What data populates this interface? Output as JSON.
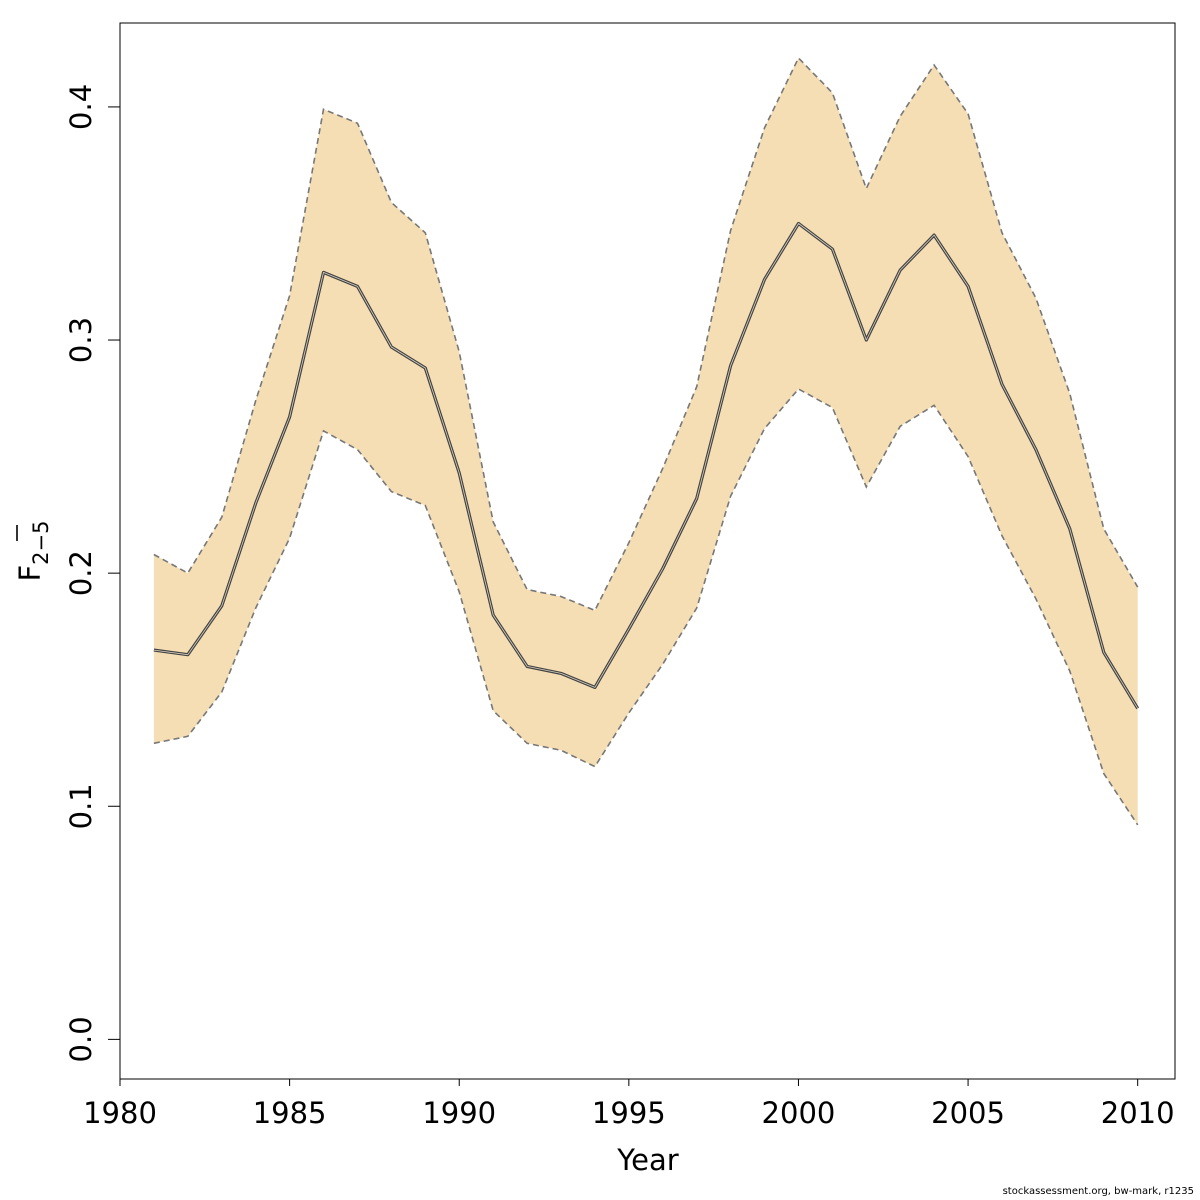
{
  "chart_data": {
    "type": "area",
    "xlabel": "Year",
    "ylabel": {
      "main": "F",
      "sub": "2−5"
    },
    "xlim": [
      1980,
      2011.1
    ],
    "ylim": [
      -0.017,
      0.436
    ],
    "xticks": [
      "1980",
      "1985",
      "1990",
      "1995",
      "2000",
      "2005",
      "2010"
    ],
    "yticks": [
      "0.0",
      "0.1",
      "0.2",
      "0.3",
      "0.4"
    ],
    "colors": {
      "band": "#f5deb3",
      "line": "#444444",
      "bounds": "#777777"
    },
    "x": [
      1981,
      1982,
      1983,
      1984,
      1985,
      1986,
      1987,
      1988,
      1989,
      1990,
      1991,
      1992,
      1993,
      1994,
      1995,
      1996,
      1997,
      1998,
      1999,
      2000,
      2001,
      2002,
      2003,
      2004,
      2005,
      2006,
      2007,
      2008,
      2009,
      2010
    ],
    "series": [
      {
        "values": [
          0.167,
          0.165,
          0.186,
          0.23,
          0.267,
          0.329,
          0.323,
          0.297,
          0.288,
          0.243,
          0.182,
          0.16,
          0.157,
          0.151,
          0.176,
          0.202,
          0.232,
          0.289,
          0.326,
          0.35,
          0.339,
          0.3,
          0.33,
          0.345,
          0.323,
          0.281,
          0.253,
          0.219,
          0.166,
          0.142
        ]
      },
      {
        "values": [
          0.127,
          0.13,
          0.149,
          0.185,
          0.215,
          0.261,
          0.253,
          0.235,
          0.229,
          0.192,
          0.141,
          0.127,
          0.124,
          0.117,
          0.14,
          0.161,
          0.185,
          0.233,
          0.262,
          0.279,
          0.271,
          0.237,
          0.263,
          0.272,
          0.25,
          0.216,
          0.189,
          0.158,
          0.114,
          0.092
        ]
      },
      {
        "values": [
          0.208,
          0.2,
          0.224,
          0.274,
          0.319,
          0.399,
          0.393,
          0.359,
          0.346,
          0.295,
          0.222,
          0.193,
          0.19,
          0.184,
          0.213,
          0.245,
          0.28,
          0.347,
          0.391,
          0.421,
          0.406,
          0.365,
          0.396,
          0.418,
          0.397,
          0.346,
          0.318,
          0.277,
          0.219,
          0.194
        ]
      }
    ]
  },
  "footer": {
    "credit": "stockassessment.org, bw-mark, r1235"
  }
}
